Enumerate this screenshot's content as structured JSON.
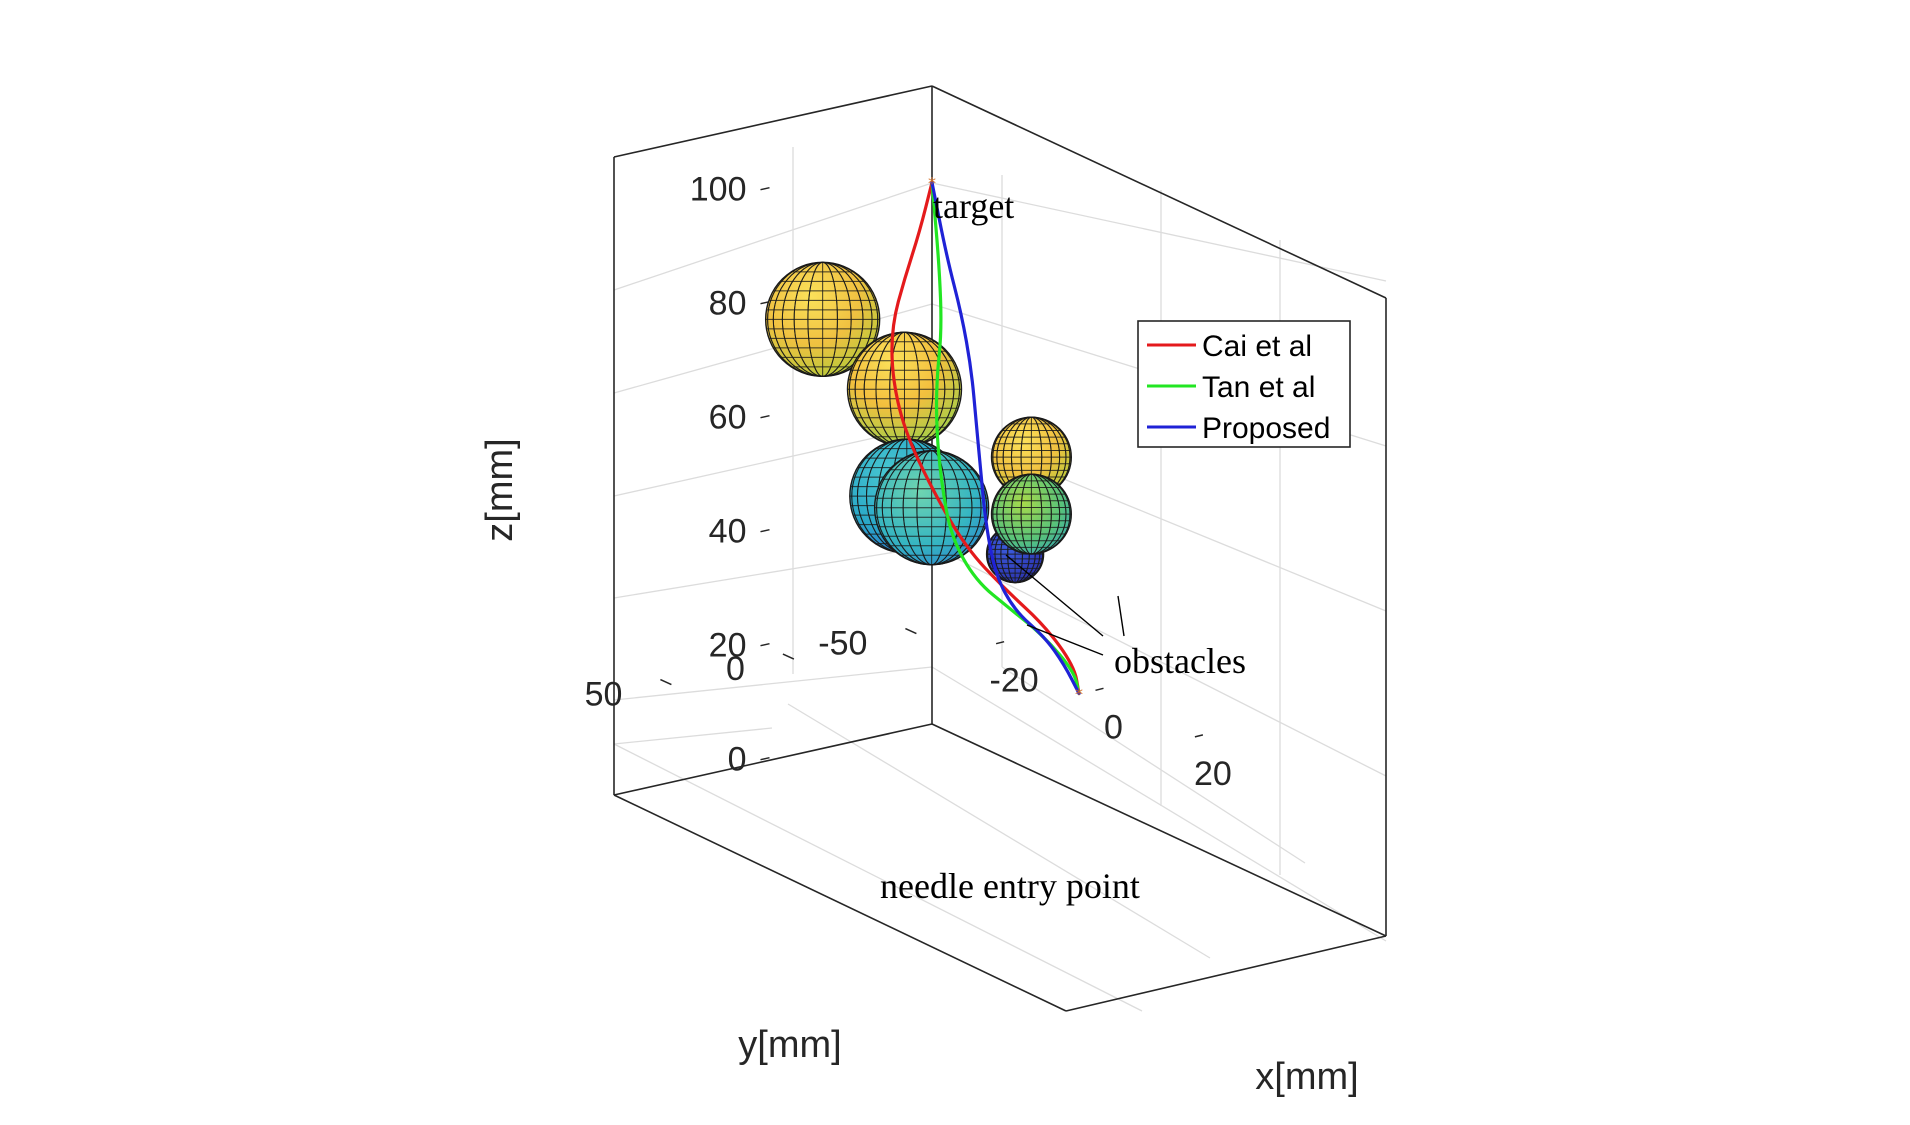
{
  "chart_data": {
    "type": "3d-line",
    "axes": {
      "xlabel": "x[mm]",
      "ylabel": "y[mm]",
      "zlabel": "z[mm]",
      "xlim": [
        -30,
        30
      ],
      "ylim": [
        -70,
        70
      ],
      "zlim": [
        0,
        100
      ],
      "xticks": [
        -20,
        0,
        20
      ],
      "yticks": [
        -50,
        0,
        50
      ],
      "zticks": [
        0,
        20,
        40,
        60,
        80,
        100
      ],
      "grid": true
    },
    "legend": {
      "placement": "right",
      "entries": [
        {
          "label": "Cai et al",
          "color": "#e41a1c"
        },
        {
          "label": "Tan et al",
          "color": "#22e622"
        },
        {
          "label": "Proposed",
          "color": "#1f22d6"
        }
      ]
    },
    "annotations": {
      "target": "target",
      "entry": "needle entry point",
      "obstacles": "obstacles"
    },
    "series": [
      {
        "name": "Cai et al",
        "points": [
          [
            0,
            -60,
            0
          ],
          [
            0,
            -58,
            5
          ],
          [
            -2,
            -50,
            12
          ],
          [
            -5,
            -40,
            18
          ],
          [
            -8,
            -30,
            25
          ],
          [
            -11,
            -22,
            35
          ],
          [
            -13,
            -15,
            45
          ],
          [
            -13,
            -10,
            55
          ],
          [
            -11,
            -6,
            65
          ],
          [
            -7,
            -3,
            75
          ],
          [
            -3,
            -1,
            85
          ],
          [
            0,
            0,
            95
          ]
        ]
      },
      {
        "name": "Tan et al",
        "points": [
          [
            0,
            -60,
            0
          ],
          [
            0,
            -58,
            4
          ],
          [
            -2,
            -50,
            10
          ],
          [
            -4,
            -40,
            15
          ],
          [
            -6,
            -30,
            20
          ],
          [
            -7,
            -22,
            28
          ],
          [
            -7,
            -18,
            38
          ],
          [
            -6,
            -14,
            48
          ],
          [
            -4,
            -10,
            58
          ],
          [
            -1,
            -6,
            68
          ],
          [
            0,
            -3,
            80
          ],
          [
            0,
            0,
            95
          ]
        ]
      },
      {
        "name": "Proposed",
        "points": [
          [
            0,
            -60,
            0
          ],
          [
            -1,
            -56,
            5
          ],
          [
            -2,
            -50,
            10
          ],
          [
            -3,
            -40,
            15
          ],
          [
            -3,
            -32,
            22
          ],
          [
            -2,
            -26,
            32
          ],
          [
            0,
            -20,
            42
          ],
          [
            1,
            -16,
            52
          ],
          [
            2,
            -12,
            62
          ],
          [
            2,
            -8,
            72
          ],
          [
            1,
            -4,
            82
          ],
          [
            0,
            0,
            95
          ]
        ]
      }
    ],
    "obstacles": [
      {
        "center": [
          -22,
          0,
          62
        ],
        "radius": 10,
        "color": "#f2c53c"
      },
      {
        "center": [
          -8,
          -5,
          55
        ],
        "radius": 10,
        "color": "#f0c43e"
      },
      {
        "center": [
          -10,
          -10,
          35
        ],
        "radius": 10,
        "color": "#35b3c9"
      },
      {
        "center": [
          -5,
          -10,
          35
        ],
        "radius": 10,
        "color": "#41b8c4"
      },
      {
        "center": [
          -3,
          -40,
          25
        ],
        "radius": 5,
        "color": "#3447c7"
      },
      {
        "center": [
          20,
          0,
          55
        ],
        "radius": 7,
        "color": "#f2c53c"
      },
      {
        "center": [
          20,
          0,
          45
        ],
        "radius": 7,
        "color": "#6fc76c"
      }
    ]
  }
}
